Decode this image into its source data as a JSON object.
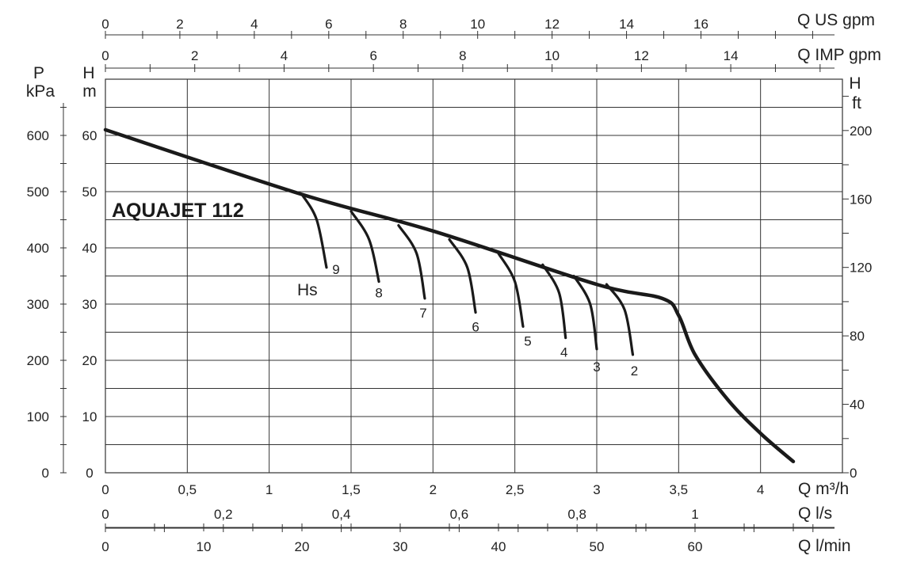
{
  "chart_data": {
    "type": "line",
    "title": "AQUAJET 112",
    "xlabel": "Q m³/h",
    "ylabel": "H m",
    "xlim": [
      0,
      4.5
    ],
    "ylim": [
      0,
      70
    ],
    "grid": true,
    "x_ticks": [
      "0",
      "0,5",
      "1",
      "1,5",
      "2",
      "2,5",
      "3",
      "3,5",
      "4"
    ],
    "y_ticks": [
      "0",
      "10",
      "20",
      "30",
      "40",
      "50",
      "60"
    ],
    "series": [
      {
        "name": "",
        "x": [
          0,
          1.2,
          2,
          3,
          3.4,
          3.5,
          3.6,
          3.8,
          4.0,
          4.2
        ],
        "y": [
          61,
          49.5,
          43,
          33.5,
          31,
          28,
          21,
          13,
          7,
          2
        ]
      }
    ],
    "suction_curves": [
      {
        "name": "9",
        "x": [
          1.2,
          1.29,
          1.35
        ],
        "y": [
          49.5,
          45,
          36.5
        ]
      },
      {
        "name": "8",
        "x": [
          1.5,
          1.61,
          1.67
        ],
        "y": [
          46.5,
          41.5,
          34
        ]
      },
      {
        "name": "7",
        "x": [
          1.79,
          1.9,
          1.95
        ],
        "y": [
          44,
          39,
          31
        ]
      },
      {
        "name": "6",
        "x": [
          2.1,
          2.21,
          2.26
        ],
        "y": [
          41.5,
          36.5,
          28.5
        ]
      },
      {
        "name": "5",
        "x": [
          2.4,
          2.5,
          2.55
        ],
        "y": [
          39,
          34,
          26
        ]
      },
      {
        "name": "4",
        "x": [
          2.67,
          2.77,
          2.81
        ],
        "y": [
          37,
          32,
          24
        ]
      },
      {
        "name": "3",
        "x": [
          2.86,
          2.96,
          3.0
        ],
        "y": [
          35,
          30,
          22
        ]
      },
      {
        "name": "2",
        "x": [
          3.06,
          3.17,
          3.22
        ],
        "y": [
          33.5,
          29,
          21
        ]
      }
    ],
    "suction_label": "Hs",
    "axes": {
      "top_us": {
        "label": "Q US gpm",
        "ticks": [
          "0",
          "2",
          "4",
          "6",
          "8",
          "10",
          "12",
          "14",
          "16"
        ],
        "values": [
          0,
          2,
          4,
          6,
          8,
          10,
          12,
          14,
          16
        ],
        "max": 19.8
      },
      "top_imp": {
        "label": "Q IMP gpm",
        "ticks": [
          "0",
          "2",
          "4",
          "6",
          "8",
          "10",
          "12",
          "14"
        ],
        "values": [
          0,
          2,
          4,
          6,
          8,
          10,
          12,
          14
        ],
        "max": 16.5
      },
      "bottom_ls": {
        "label": "Q l/s",
        "ticks": [
          "0",
          "0,2",
          "0,4",
          "0,6",
          "0,8",
          "1"
        ],
        "values": [
          0,
          0.2,
          0.4,
          0.6,
          0.8,
          1.0
        ],
        "max": 1.25
      },
      "bottom_lmin": {
        "label": "Q l/min",
        "ticks": [
          "0",
          "10",
          "20",
          "30",
          "40",
          "50",
          "60"
        ],
        "values": [
          0,
          10,
          20,
          30,
          40,
          50,
          60
        ],
        "max": 75
      },
      "left_kpa": {
        "label_top": "P",
        "label_bottom": "kPa",
        "ticks": [
          "0",
          "100",
          "200",
          "300",
          "400",
          "500",
          "600"
        ],
        "values": [
          0,
          100,
          200,
          300,
          400,
          500,
          600
        ],
        "max": 700
      },
      "left_m": {
        "label_top": "H",
        "label_bottom": "m"
      },
      "right_ft": {
        "label_top": "H",
        "label_bottom": "ft",
        "ticks": [
          "0",
          "40",
          "80",
          "120",
          "160",
          "200"
        ],
        "values": [
          0,
          40,
          80,
          120,
          160,
          200
        ],
        "max": 230
      },
      "bottom_m3h": {
        "label": "Q m³/h"
      }
    }
  }
}
